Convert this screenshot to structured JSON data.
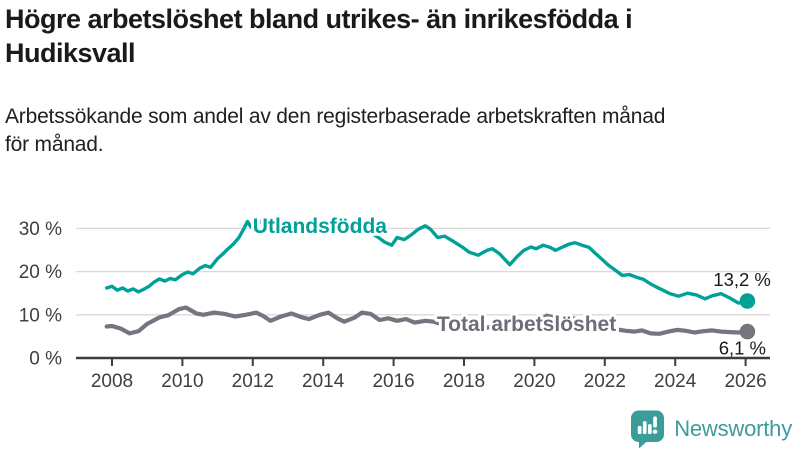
{
  "header": {
    "title_lines": [
      "Högre arbetslöshet bland utrikes- än inrikesfödda i",
      "Hudiksvall"
    ],
    "subtitle_lines": [
      "Arbetssökande som andel av den registerbaserade arbetskraften månad",
      "för månad."
    ]
  },
  "chart_data": {
    "type": "line",
    "title": "Högre arbetslöshet bland utrikes- än inrikesfödda i Hudiksvall",
    "subtitle": "Arbetssökande som andel av den registerbaserade arbetskraften månad för månad.",
    "xlabel": "",
    "ylabel": "",
    "grid": "horizontal",
    "legend_position": "inline-labels",
    "xlim": [
      2007.85,
      2026.8
    ],
    "ylim": [
      0,
      33
    ],
    "yticks": [
      0,
      10,
      20,
      30
    ],
    "ytick_labels": [
      "0 %",
      "10 %",
      "20 %",
      "30 %"
    ],
    "xticks": [
      2008,
      2010,
      2012,
      2014,
      2016,
      2018,
      2020,
      2022,
      2024,
      2026
    ],
    "xtick_labels": [
      "2008",
      "2010",
      "2012",
      "2014",
      "2016",
      "2018",
      "2020",
      "2022",
      "2024",
      "2026"
    ],
    "colors": {
      "utlandsfodda": "#00a199",
      "total": "#76747e",
      "grid": "#d8d8d8",
      "axis": "#3d3d3d",
      "value_label": "#1a1a1a"
    },
    "series": [
      {
        "name": "Utlandsfödda",
        "color": "#00a199",
        "stroke_width": 3.4,
        "end_value": 13.2,
        "end_value_label": "13,2 %",
        "points": [
          [
            2007.85,
            16.2
          ],
          [
            2008.0,
            16.6
          ],
          [
            2008.15,
            15.7
          ],
          [
            2008.3,
            16.2
          ],
          [
            2008.45,
            15.5
          ],
          [
            2008.6,
            16.0
          ],
          [
            2008.75,
            15.3
          ],
          [
            2008.9,
            15.9
          ],
          [
            2009.05,
            16.6
          ],
          [
            2009.2,
            17.6
          ],
          [
            2009.35,
            18.3
          ],
          [
            2009.5,
            17.8
          ],
          [
            2009.65,
            18.4
          ],
          [
            2009.8,
            18.1
          ],
          [
            2010.0,
            19.3
          ],
          [
            2010.15,
            19.9
          ],
          [
            2010.3,
            19.5
          ],
          [
            2010.5,
            20.8
          ],
          [
            2010.65,
            21.4
          ],
          [
            2010.8,
            21.0
          ],
          [
            2011.0,
            23.0
          ],
          [
            2011.15,
            24.1
          ],
          [
            2011.3,
            25.3
          ],
          [
            2011.45,
            26.4
          ],
          [
            2011.6,
            27.8
          ],
          [
            2011.75,
            30.0
          ],
          [
            2011.85,
            31.6
          ],
          [
            2011.95,
            30.3
          ],
          [
            2012.1,
            32.2
          ],
          [
            2012.25,
            31.3
          ],
          [
            2012.4,
            32.0
          ],
          [
            2012.55,
            31.0
          ],
          [
            2012.7,
            31.5
          ],
          [
            2012.9,
            30.7
          ],
          [
            2013.1,
            31.1
          ],
          [
            2013.35,
            30.1
          ],
          [
            2013.6,
            30.6
          ],
          [
            2013.85,
            29.7
          ],
          [
            2014.1,
            30.2
          ],
          [
            2014.35,
            29.4
          ],
          [
            2014.6,
            29.9
          ],
          [
            2014.85,
            29.0
          ],
          [
            2015.1,
            29.4
          ],
          [
            2015.3,
            29.2
          ],
          [
            2015.55,
            28.0
          ],
          [
            2015.75,
            26.8
          ],
          [
            2015.95,
            26.1
          ],
          [
            2016.1,
            27.9
          ],
          [
            2016.3,
            27.4
          ],
          [
            2016.5,
            28.5
          ],
          [
            2016.7,
            29.8
          ],
          [
            2016.9,
            30.6
          ],
          [
            2017.05,
            29.8
          ],
          [
            2017.25,
            27.9
          ],
          [
            2017.45,
            28.2
          ],
          [
            2017.7,
            27.0
          ],
          [
            2017.95,
            25.7
          ],
          [
            2018.15,
            24.5
          ],
          [
            2018.4,
            23.8
          ],
          [
            2018.65,
            24.9
          ],
          [
            2018.8,
            25.3
          ],
          [
            2019.0,
            24.2
          ],
          [
            2019.3,
            21.6
          ],
          [
            2019.5,
            23.4
          ],
          [
            2019.7,
            24.9
          ],
          [
            2019.9,
            25.7
          ],
          [
            2020.05,
            25.3
          ],
          [
            2020.25,
            26.1
          ],
          [
            2020.45,
            25.6
          ],
          [
            2020.6,
            24.9
          ],
          [
            2020.8,
            25.7
          ],
          [
            2021.0,
            26.4
          ],
          [
            2021.15,
            26.7
          ],
          [
            2021.35,
            26.1
          ],
          [
            2021.55,
            25.6
          ],
          [
            2021.7,
            24.5
          ],
          [
            2021.9,
            23.0
          ],
          [
            2022.1,
            21.5
          ],
          [
            2022.3,
            20.3
          ],
          [
            2022.5,
            19.1
          ],
          [
            2022.7,
            19.3
          ],
          [
            2022.9,
            18.7
          ],
          [
            2023.1,
            18.2
          ],
          [
            2023.35,
            16.9
          ],
          [
            2023.6,
            15.9
          ],
          [
            2023.85,
            14.9
          ],
          [
            2024.1,
            14.3
          ],
          [
            2024.35,
            15.0
          ],
          [
            2024.6,
            14.6
          ],
          [
            2024.85,
            13.7
          ],
          [
            2025.05,
            14.4
          ],
          [
            2025.3,
            14.9
          ],
          [
            2025.55,
            13.9
          ],
          [
            2025.8,
            12.7
          ],
          [
            2026.05,
            13.2
          ]
        ]
      },
      {
        "name": "Total arbetslöshet",
        "color": "#76747e",
        "stroke_width": 4.2,
        "end_value": 6.1,
        "end_value_label": "6,1 %",
        "points": [
          [
            2007.85,
            7.3
          ],
          [
            2008.0,
            7.4
          ],
          [
            2008.25,
            6.8
          ],
          [
            2008.5,
            5.7
          ],
          [
            2008.75,
            6.2
          ],
          [
            2009.0,
            7.9
          ],
          [
            2009.35,
            9.4
          ],
          [
            2009.6,
            9.9
          ],
          [
            2009.9,
            11.3
          ],
          [
            2010.1,
            11.7
          ],
          [
            2010.4,
            10.3
          ],
          [
            2010.6,
            10.0
          ],
          [
            2010.9,
            10.5
          ],
          [
            2011.2,
            10.2
          ],
          [
            2011.5,
            9.6
          ],
          [
            2011.8,
            10.0
          ],
          [
            2012.1,
            10.5
          ],
          [
            2012.3,
            9.7
          ],
          [
            2012.5,
            8.6
          ],
          [
            2012.8,
            9.6
          ],
          [
            2013.1,
            10.3
          ],
          [
            2013.4,
            9.4
          ],
          [
            2013.6,
            9.0
          ],
          [
            2013.9,
            10.0
          ],
          [
            2014.15,
            10.5
          ],
          [
            2014.4,
            9.2
          ],
          [
            2014.6,
            8.4
          ],
          [
            2014.9,
            9.4
          ],
          [
            2015.1,
            10.5
          ],
          [
            2015.35,
            10.2
          ],
          [
            2015.6,
            8.8
          ],
          [
            2015.85,
            9.2
          ],
          [
            2016.1,
            8.6
          ],
          [
            2016.35,
            9.0
          ],
          [
            2016.6,
            8.2
          ],
          [
            2016.9,
            8.6
          ],
          [
            2017.15,
            8.4
          ],
          [
            2017.4,
            7.7
          ],
          [
            2017.65,
            7.3
          ],
          [
            2017.9,
            7.9
          ],
          [
            2018.15,
            8.0
          ],
          [
            2018.4,
            7.2
          ],
          [
            2018.65,
            7.0
          ],
          [
            2018.9,
            7.5
          ],
          [
            2019.15,
            7.6
          ],
          [
            2019.4,
            7.0
          ],
          [
            2019.65,
            7.1
          ],
          [
            2019.9,
            7.8
          ],
          [
            2020.15,
            8.6
          ],
          [
            2020.35,
            9.8
          ],
          [
            2020.6,
            9.3
          ],
          [
            2020.85,
            9.6
          ],
          [
            2021.1,
            9.2
          ],
          [
            2021.35,
            8.6
          ],
          [
            2021.6,
            8.0
          ],
          [
            2021.85,
            7.5
          ],
          [
            2022.1,
            7.0
          ],
          [
            2022.35,
            6.6
          ],
          [
            2022.6,
            6.3
          ],
          [
            2022.85,
            6.1
          ],
          [
            2023.05,
            6.4
          ],
          [
            2023.3,
            5.7
          ],
          [
            2023.55,
            5.6
          ],
          [
            2023.8,
            6.1
          ],
          [
            2024.05,
            6.5
          ],
          [
            2024.3,
            6.3
          ],
          [
            2024.55,
            5.9
          ],
          [
            2024.8,
            6.2
          ],
          [
            2025.05,
            6.4
          ],
          [
            2025.3,
            6.1
          ],
          [
            2025.55,
            6.0
          ],
          [
            2025.8,
            5.9
          ],
          [
            2026.05,
            6.1
          ]
        ]
      }
    ],
    "annotations": [
      {
        "text": "Utlandsfödda",
        "x": 2012.0,
        "y": 28.9,
        "anchor": "start",
        "color": "#00a199",
        "bold": true,
        "halo": true
      },
      {
        "text": "Total arbetslöshet",
        "x": 2017.23,
        "y": 6.25,
        "anchor": "start",
        "color": "#6e6c78",
        "bold": true,
        "halo": true
      },
      {
        "text": "13,2 %",
        "x": 2026.72,
        "y": 16.7,
        "anchor": "end",
        "color": "#1a1a1a",
        "bold": false,
        "halo": false
      },
      {
        "text": "6,1 %",
        "x": 2026.58,
        "y": 0.8,
        "anchor": "end",
        "color": "#1a1a1a",
        "bold": false,
        "halo": false
      }
    ]
  },
  "branding": {
    "logo_text": "Newsworthy",
    "logo_icon": "bar-chart-speech-bubble-icon",
    "logo_color": "#3c9c99"
  }
}
